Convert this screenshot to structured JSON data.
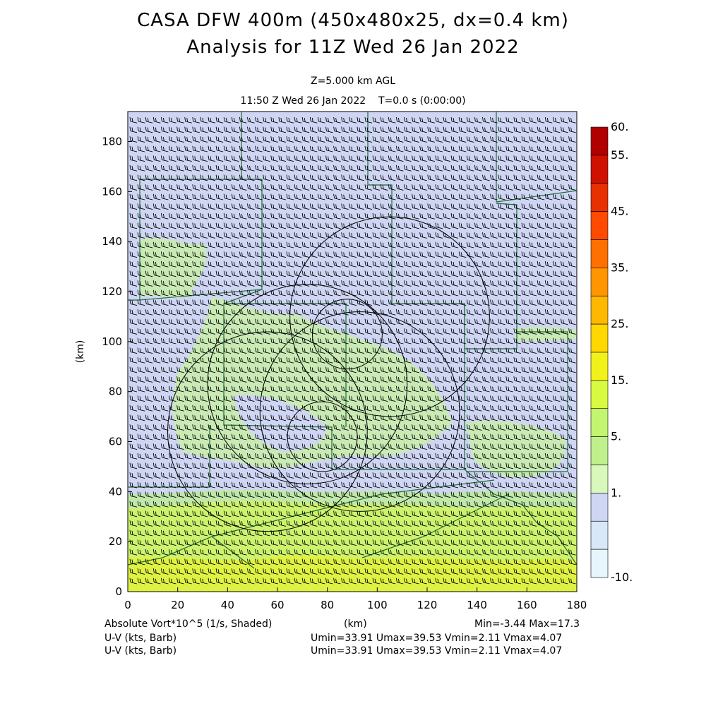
{
  "header": {
    "title_line1": "CASA DFW 400m (450x480x25, dx=0.4 km)",
    "title_line2": "Analysis for 11Z Wed 26 Jan 2022",
    "level": "Z=5.000 km AGL",
    "time_line": "11:50 Z Wed 26 Jan 2022    T=0.0 s (0:00:00)"
  },
  "axes": {
    "x_ticks": [
      "0",
      "20",
      "40",
      "60",
      "80",
      "100",
      "120",
      "140",
      "160",
      "180"
    ],
    "y_ticks": [
      "0",
      "20",
      "40",
      "60",
      "80",
      "100",
      "120",
      "140",
      "160",
      "180"
    ],
    "y_label": "(km)",
    "x_label": "(km)",
    "x_range": [
      0,
      180
    ],
    "y_range": [
      0,
      192
    ]
  },
  "colorbar": {
    "labels": [
      "60.",
      "55.",
      "45.",
      "35.",
      "25.",
      "15.",
      "5.",
      "1.",
      "-10."
    ],
    "colors": [
      "#b00000",
      "#d01000",
      "#e83000",
      "#ff4a00",
      "#ff7000",
      "#ff9600",
      "#ffb800",
      "#ffd800",
      "#f2f21a",
      "#d8fa40",
      "#c4f570",
      "#bff08c",
      "#d8f8bc",
      "#cfd6f4",
      "#d8e8f8",
      "#e6f6fc"
    ]
  },
  "footer": {
    "field_label": "Absolute Vort*10^5 (1/s, Shaded)",
    "x_label": "(km)",
    "minmax": "Min=-3.44 Max=17.3",
    "barb_label_1": "U-V (kts, Barb)",
    "barb_stats_1": "Umin=33.91 Umax=39.53 Vmin=2.11 Vmax=4.07",
    "barb_label_2": "U-V (kts, Barb)",
    "barb_stats_2": "Umin=33.91 Umax=39.53 Vmin=2.11 Vmax=4.07"
  },
  "map_colors": {
    "background_field": "#cfd6f4",
    "low_vorticity": "#c0e8a8",
    "mid_vorticity": "#cdf26e",
    "high_vorticity": "#e2f53a",
    "county_lines": "#1f6b3a",
    "radar_rings": "#000000",
    "barbs": "#000000"
  }
}
